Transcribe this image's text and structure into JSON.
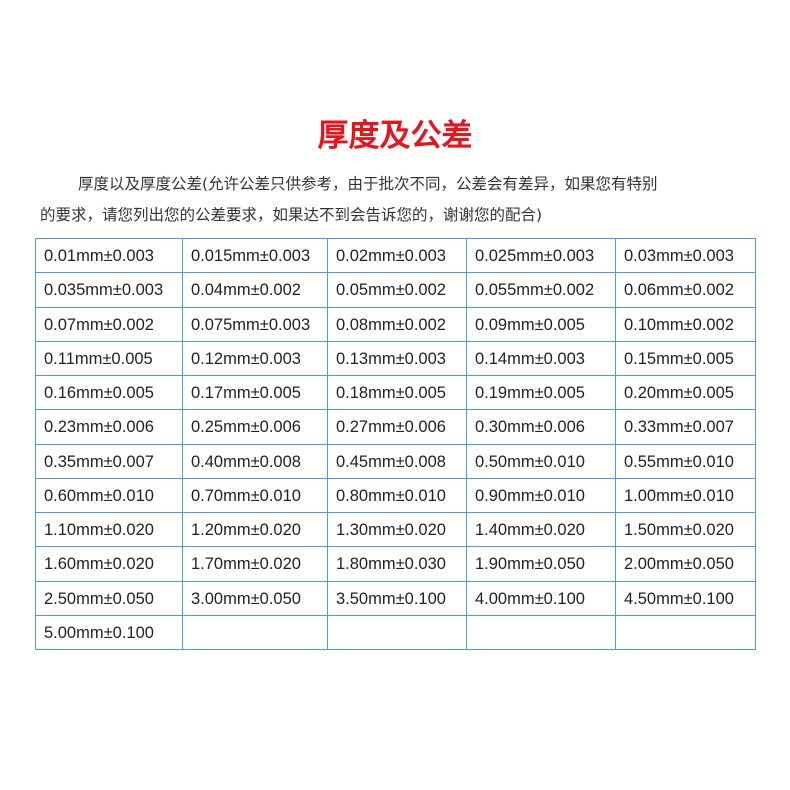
{
  "title": "厚度及公差",
  "description": [
    "厚度以及厚度公差(允许公差只供参考，由于批次不同，公差会有差异，如果您有特别",
    "的要求，请您列出您的公差要求，如果达不到会告诉您的，谢谢您的配合)"
  ],
  "table": {
    "rows": [
      [
        "0.01mm±0.003",
        "0.015mm±0.003",
        "0.02mm±0.003",
        "0.025mm±0.003",
        "0.03mm±0.003"
      ],
      [
        "0.035mm±0.003",
        "0.04mm±0.002",
        "0.05mm±0.002",
        "0.055mm±0.002",
        "0.06mm±0.002"
      ],
      [
        "0.07mm±0.002",
        "0.075mm±0.003",
        "0.08mm±0.002",
        "0.09mm±0.005",
        "0.10mm±0.002"
      ],
      [
        "0.11mm±0.005",
        "0.12mm±0.003",
        "0.13mm±0.003",
        "0.14mm±0.003",
        "0.15mm±0.005"
      ],
      [
        "0.16mm±0.005",
        "0.17mm±0.005",
        "0.18mm±0.005",
        "0.19mm±0.005",
        "0.20mm±0.005"
      ],
      [
        "0.23mm±0.006",
        "0.25mm±0.006",
        "0.27mm±0.006",
        "0.30mm±0.006",
        "0.33mm±0.007"
      ],
      [
        "0.35mm±0.007",
        "0.40mm±0.008",
        "0.45mm±0.008",
        "0.50mm±0.010",
        "0.55mm±0.010"
      ],
      [
        "0.60mm±0.010",
        "0.70mm±0.010",
        "0.80mm±0.010",
        "0.90mm±0.010",
        "1.00mm±0.010"
      ],
      [
        "1.10mm±0.020",
        "1.20mm±0.020",
        "1.30mm±0.020",
        "1.40mm±0.020",
        "1.50mm±0.020"
      ],
      [
        "1.60mm±0.020",
        "1.70mm±0.020",
        "1.80mm±0.030",
        "1.90mm±0.050",
        "2.00mm±0.050"
      ],
      [
        "2.50mm±0.050",
        "3.00mm±0.050",
        "3.50mm±0.100",
        "4.00mm±0.100",
        "4.50mm±0.100"
      ],
      [
        "5.00mm±0.100"
      ]
    ]
  }
}
